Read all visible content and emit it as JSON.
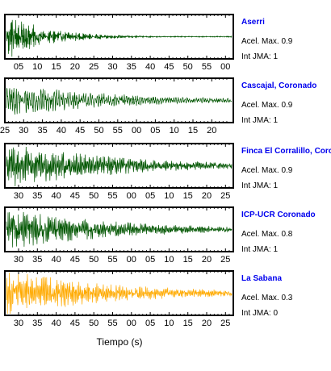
{
  "figure": {
    "xlabel": "Tiempo (s)"
  },
  "chart_data": [
    {
      "type": "line",
      "station": "Aserri",
      "accel_label": "Acel. Max. 0.9",
      "int_label": "Int JMA: 1",
      "peak_accel": 0.9,
      "jma_intensity": 1,
      "color": "#005500",
      "tick_labels": [
        "05",
        "10",
        "15",
        "20",
        "25",
        "30",
        "35",
        "40",
        "45",
        "50",
        "55",
        "00"
      ],
      "show_tick_labels": true,
      "series": {
        "amplitude": 1.0,
        "envelope": "fast-decay",
        "dominant_period": "short"
      }
    },
    {
      "type": "line",
      "station": "Cascajal, Coronado",
      "accel_label": "Acel. Max. 0.9",
      "int_label": "Int JMA: 1",
      "peak_accel": 0.9,
      "jma_intensity": 1,
      "color": "#005500",
      "tick_labels": [
        "25",
        "30",
        "35",
        "40",
        "45",
        "50",
        "55",
        "00",
        "05",
        "10",
        "15",
        "20"
      ],
      "show_tick_labels": true,
      "series": {
        "amplitude": 0.7,
        "envelope": "slow-decay",
        "dominant_period": "long"
      }
    },
    {
      "type": "line",
      "station": "Finca El Corralillo, Coronado",
      "accel_label": "Acel. Max. 0.9",
      "int_label": "Int JMA: 1",
      "peak_accel": 0.9,
      "jma_intensity": 1,
      "color": "#005500",
      "tick_labels": [
        "30",
        "35",
        "40",
        "45",
        "50",
        "55",
        "00",
        "05",
        "10",
        "15",
        "20",
        "25"
      ],
      "show_tick_labels": true,
      "series": {
        "amplitude": 0.95,
        "envelope": "slow-decay",
        "dominant_period": "medium"
      }
    },
    {
      "type": "line",
      "station": "ICP-UCR Coronado",
      "accel_label": "Acel. Max. 0.8",
      "int_label": "Int JMA: 1",
      "peak_accel": 0.8,
      "jma_intensity": 1,
      "color": "#005500",
      "tick_labels": [
        "30",
        "35",
        "40",
        "45",
        "50",
        "55",
        "00",
        "05",
        "10",
        "15",
        "20",
        "25"
      ],
      "show_tick_labels": true,
      "series": {
        "amplitude": 0.85,
        "envelope": "slow-decay",
        "dominant_period": "medium"
      }
    },
    {
      "type": "line",
      "station": "La Sabana",
      "accel_label": "Acel. Max. 0.3",
      "int_label": "Int JMA: 0",
      "peak_accel": 0.3,
      "jma_intensity": 0,
      "color": "#FFAA00",
      "tick_labels": [
        "30",
        "35",
        "40",
        "45",
        "50",
        "55",
        "00",
        "05",
        "10",
        "15",
        "20",
        "25"
      ],
      "show_tick_labels": true,
      "series": {
        "amplitude": 0.95,
        "envelope": "slow-decay",
        "dominant_period": "medium"
      }
    }
  ],
  "colors": {
    "station_label": "#0000EE",
    "frame": "#000000",
    "text": "#000000"
  }
}
